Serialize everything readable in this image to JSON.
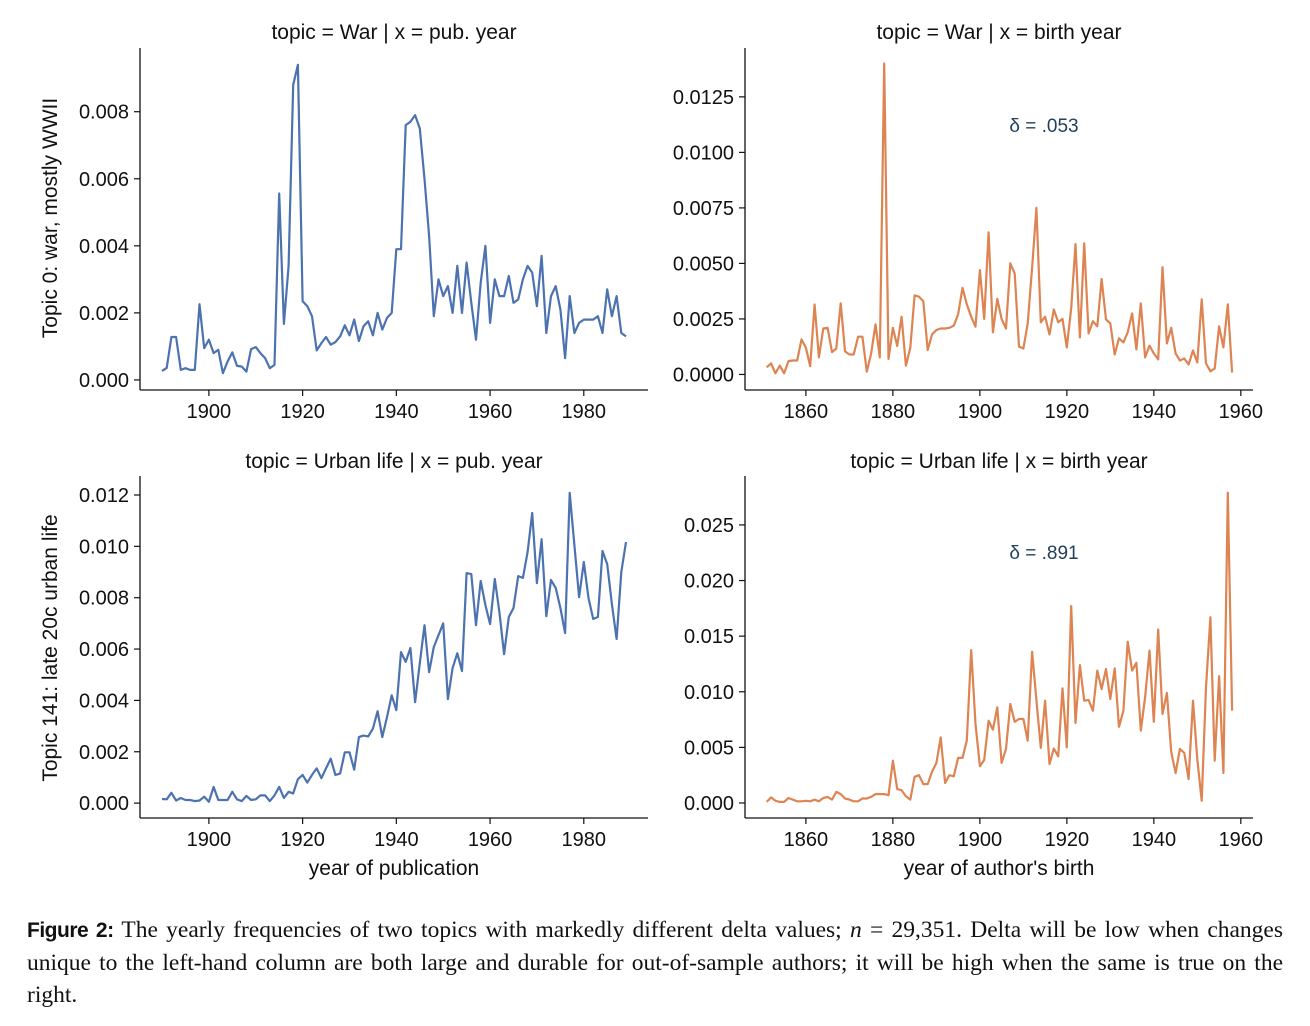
{
  "caption": {
    "label": "Figure 2:",
    "text_before": " The yearly frequencies of two topics with markedly different delta values; ",
    "math_var": "n",
    "math_rest": " = 29,351",
    "text_after": ". Delta will be low when changes unique to the left-hand column are both large and durable for out-of-sample authors; it will be high when the same is true on the right."
  },
  "colors": {
    "pub_year": "#4c72b0",
    "birth_year": "#dd8452",
    "annotation": "#1f3f5a"
  },
  "chart_data": [
    {
      "type": "line",
      "title": "topic = War | x = pub. year",
      "ylabel": "Topic 0: war, mostly WWII",
      "xlabel": "",
      "color": "#4c72b0",
      "xlim": [
        1885.3,
        1993.7
      ],
      "ylim": [
        -0.0003,
        0.0099
      ],
      "xticks": [
        1900,
        1920,
        1940,
        1960,
        1980
      ],
      "yticks": [
        "0.000",
        "0.002",
        "0.004",
        "0.006",
        "0.008"
      ],
      "grid": false,
      "x_start": 1890,
      "values": [
        0.00027,
        0.00036,
        0.00128,
        0.00128,
        0.0003,
        0.00035,
        0.0003,
        0.0003,
        0.00226,
        0.00095,
        0.0012,
        0.0008,
        0.0009,
        0.0002,
        0.00055,
        0.00082,
        0.00042,
        0.0004,
        0.00025,
        0.00092,
        0.00098,
        0.0008,
        0.00065,
        0.00035,
        0.00045,
        0.00556,
        0.00167,
        0.0034,
        0.0088,
        0.0094,
        0.00235,
        0.0022,
        0.0019,
        0.00088,
        0.0011,
        0.00128,
        0.00105,
        0.00113,
        0.0013,
        0.00163,
        0.00133,
        0.0018,
        0.00116,
        0.0016,
        0.00175,
        0.00133,
        0.002,
        0.0015,
        0.00185,
        0.002,
        0.0039,
        0.0039,
        0.0076,
        0.0077,
        0.0079,
        0.0075,
        0.006,
        0.0043,
        0.0019,
        0.003,
        0.0025,
        0.0028,
        0.002,
        0.0034,
        0.002,
        0.0035,
        0.0023,
        0.0012,
        0.0029,
        0.004,
        0.0017,
        0.003,
        0.0025,
        0.0025,
        0.0031,
        0.0023,
        0.0024,
        0.003,
        0.0034,
        0.0032,
        0.0022,
        0.0037,
        0.0014,
        0.0025,
        0.0028,
        0.0021,
        0.00065,
        0.0025,
        0.0014,
        0.0017,
        0.0018,
        0.0018,
        0.0018,
        0.0019,
        0.0014,
        0.0027,
        0.0019,
        0.0025,
        0.0014,
        0.0013
      ],
      "annotation": ""
    },
    {
      "type": "line",
      "title": "topic = War | x = birth year",
      "ylabel": "",
      "xlabel": "",
      "color": "#dd8452",
      "xlim": [
        1846,
        1962.8
      ],
      "ylim": [
        -0.0007,
        0.0147
      ],
      "xticks": [
        1860,
        1880,
        1900,
        1920,
        1940,
        1960
      ],
      "yticks": [
        "0.0000",
        "0.0025",
        "0.0050",
        "0.0075",
        "0.0100",
        "0.0125"
      ],
      "grid": false,
      "x_start": 1851,
      "values": [
        0.00032,
        0.0005,
        5e-05,
        0.0004,
        5e-05,
        0.0006,
        0.00063,
        0.00063,
        0.00158,
        0.0012,
        0.00037,
        0.00315,
        0.00077,
        0.00207,
        0.0021,
        0.001,
        0.00117,
        0.0032,
        0.00104,
        0.0009,
        0.0009,
        0.0017,
        0.0017,
        0.00013,
        0.00093,
        0.00226,
        0.00077,
        0.014,
        0.0007,
        0.0021,
        0.00128,
        0.0026,
        0.0004,
        0.0012,
        0.00356,
        0.0035,
        0.0033,
        0.0011,
        0.0018,
        0.002,
        0.00207,
        0.00207,
        0.0021,
        0.0022,
        0.0027,
        0.0039,
        0.00316,
        0.0026,
        0.00215,
        0.0047,
        0.0025,
        0.0064,
        0.0019,
        0.0034,
        0.0025,
        0.00207,
        0.005,
        0.00455,
        0.00126,
        0.00117,
        0.0023,
        0.0048,
        0.0075,
        0.00235,
        0.0026,
        0.0018,
        0.00293,
        0.00235,
        0.0025,
        0.00122,
        0.00298,
        0.00587,
        0.00167,
        0.0059,
        0.00185,
        0.0024,
        0.00217,
        0.0043,
        0.00248,
        0.0023,
        0.0009,
        0.00163,
        0.00144,
        0.0019,
        0.00275,
        0.00113,
        0.0032,
        0.00077,
        0.0013,
        0.00095,
        0.00068,
        0.00483,
        0.0014,
        0.0021,
        0.00095,
        0.00063,
        0.00072,
        0.00045,
        0.00108,
        0.00054,
        0.00338,
        0.0005,
        0.00014,
        0.00027,
        0.00217,
        0.00122,
        0.00316,
        9e-05
      ],
      "annotation": "δ = .053"
    },
    {
      "type": "line",
      "title": "topic = Urban life | x = pub. year",
      "ylabel": "Topic 141: late 20c urban life",
      "xlabel": "year of publication",
      "color": "#4c72b0",
      "xlim": [
        1885.3,
        1993.7
      ],
      "ylim": [
        -0.00058,
        0.01274
      ],
      "xticks": [
        1900,
        1920,
        1940,
        1960,
        1980
      ],
      "yticks": [
        "0.000",
        "0.002",
        "0.004",
        "0.006",
        "0.008",
        "0.010",
        "0.012"
      ],
      "grid": false,
      "x_start": 1890,
      "values": [
        0.00016,
        0.00015,
        0.0004,
        0.0001,
        0.0002,
        0.00012,
        0.00012,
        8e-05,
        0.0001,
        0.00025,
        5e-05,
        0.00063,
        0.00012,
        0.00012,
        0.00012,
        0.00044,
        0.00015,
        8e-05,
        0.00028,
        0.00012,
        0.00015,
        0.0003,
        0.0003,
        8e-05,
        0.0003,
        0.00063,
        0.0002,
        0.00044,
        0.00038,
        0.00093,
        0.0011,
        0.0008,
        0.0011,
        0.00135,
        0.00097,
        0.00135,
        0.00173,
        0.0011,
        0.00115,
        0.00198,
        0.00198,
        0.0013,
        0.00257,
        0.00263,
        0.0026,
        0.0029,
        0.00358,
        0.00257,
        0.00335,
        0.0042,
        0.00362,
        0.00588,
        0.0055,
        0.00604,
        0.00393,
        0.00545,
        0.00693,
        0.0051,
        0.00608,
        0.00654,
        0.007,
        0.00405,
        0.00526,
        0.00584,
        0.00514,
        0.00896,
        0.00892,
        0.00693,
        0.00865,
        0.00771,
        0.00697,
        0.00873,
        0.00744,
        0.0058,
        0.00725,
        0.0076,
        0.00884,
        0.00877,
        0.00978,
        0.0113,
        0.00857,
        0.01028,
        0.00728,
        0.00869,
        0.00838,
        0.0076,
        0.00662,
        0.01208,
        0.01005,
        0.00802,
        0.00939,
        0.00799,
        0.00717,
        0.00725,
        0.00982,
        0.00931,
        0.00775,
        0.00639,
        0.009,
        0.01017
      ],
      "annotation": ""
    },
    {
      "type": "line",
      "title": "topic = Urban life | x = birth year",
      "ylabel": "",
      "xlabel": "year of author's birth",
      "color": "#dd8452",
      "xlim": [
        1846,
        1962.8
      ],
      "ylim": [
        -0.00135,
        0.0294
      ],
      "xticks": [
        1860,
        1880,
        1900,
        1920,
        1940,
        1960
      ],
      "yticks": [
        "0.000",
        "0.005",
        "0.010",
        "0.015",
        "0.020",
        "0.025"
      ],
      "grid": false,
      "x_start": 1851,
      "values": [
        0.0001,
        0.0005,
        0.0002,
        0.0001,
        0.0001,
        0.00045,
        0.0003,
        0.00015,
        0.00015,
        0.0002,
        0.00015,
        0.0003,
        0.00015,
        0.00045,
        0.00055,
        0.0003,
        0.001,
        0.0008,
        0.0004,
        0.0003,
        0.00015,
        0.00015,
        0.0004,
        0.0004,
        0.00055,
        0.0008,
        0.0008,
        0.0008,
        0.0007,
        0.0038,
        0.00125,
        0.00115,
        0.0006,
        0.0003,
        0.00235,
        0.0025,
        0.0017,
        0.0017,
        0.0028,
        0.0036,
        0.0059,
        0.0018,
        0.0025,
        0.0024,
        0.00405,
        0.00405,
        0.0056,
        0.01375,
        0.0071,
        0.0033,
        0.00387,
        0.0074,
        0.0066,
        0.0086,
        0.0036,
        0.00486,
        0.0089,
        0.0073,
        0.00755,
        0.00755,
        0.0056,
        0.0136,
        0.00926,
        0.00495,
        0.0092,
        0.0035,
        0.0049,
        0.0042,
        0.0103,
        0.005,
        0.0177,
        0.0072,
        0.0124,
        0.0092,
        0.00926,
        0.0083,
        0.0119,
        0.01025,
        0.01205,
        0.00935,
        0.0121,
        0.00685,
        0.0083,
        0.0145,
        0.0119,
        0.0126,
        0.0065,
        0.0095,
        0.0137,
        0.0073,
        0.0156,
        0.008,
        0.0099,
        0.0046,
        0.0027,
        0.00486,
        0.0045,
        0.00215,
        0.0092,
        0.00395,
        0.0002,
        0.0104,
        0.0167,
        0.0038,
        0.0114,
        0.0027,
        0.0279,
        0.0083
      ],
      "annotation": "δ = .891"
    }
  ]
}
